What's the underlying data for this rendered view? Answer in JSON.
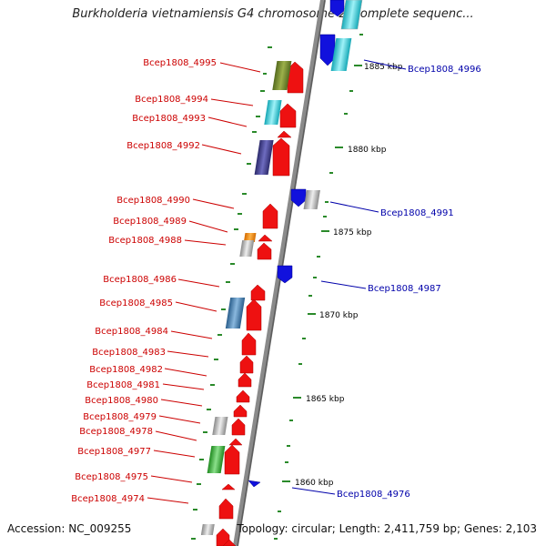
{
  "title": "Burkholderia vietnamiensis G4 chromosome 2, complete sequenc...",
  "footer": {
    "accession": "Accession: NC_009255",
    "topology": "Topology: circular; Length: 2,411,759 bp; Genes: 2,103"
  },
  "scale_labels": [
    "1885 kbp",
    "1880 kbp",
    "1875 kbp",
    "1870 kbp",
    "1865 kbp",
    "1860 kbp"
  ],
  "genes_left": [
    "Bcep1808_4995",
    "Bcep1808_4994",
    "Bcep1808_4993",
    "Bcep1808_4992",
    "Bcep1808_4990",
    "Bcep1808_4989",
    "Bcep1808_4988",
    "Bcep1808_4986",
    "Bcep1808_4985",
    "Bcep1808_4984",
    "Bcep1808_4983",
    "Bcep1808_4982",
    "Bcep1808_4981",
    "Bcep1808_4980",
    "Bcep1808_4979",
    "Bcep1808_4978",
    "Bcep1808_4977",
    "Bcep1808_4975",
    "Bcep1808_4974"
  ],
  "genes_right": [
    "Bcep1808_4996",
    "Bcep1808_4991",
    "Bcep1808_4987",
    "Bcep1808_4976"
  ],
  "colors": {
    "forward_arrow": "#ee1111",
    "reverse_arrow": "#1111dd",
    "left_label": "#cc0000",
    "right_label": "#0000aa",
    "backbone": "#8a8a8a",
    "tick": "#2a8a2a"
  }
}
